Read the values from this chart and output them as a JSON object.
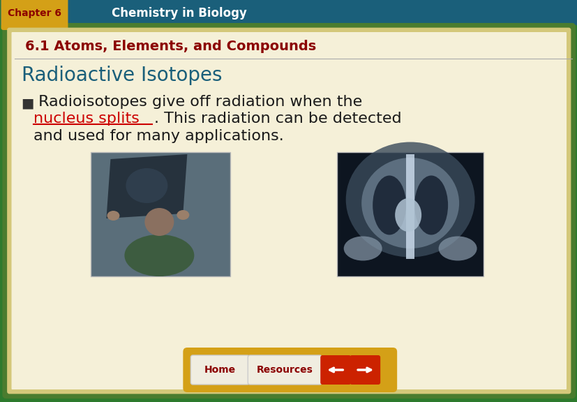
{
  "outer_bg": "#2d7a2d",
  "header_bg": "#1a5f7a",
  "header_chapter_bg": "#d4a017",
  "header_chapter_text": "Chapter 6",
  "header_chapter_text_color": "#8b0000",
  "header_title_text": "Chemistry in Biology",
  "header_title_text_color": "#ffffff",
  "content_bg": "#f5f0d8",
  "inner_border_color": "#4a7c2f",
  "inner_border_color2": "#d4c87a",
  "section_title": "6.1 Atoms, Elements, and Compounds",
  "section_title_color": "#8b0000",
  "slide_title": "Radioactive Isotopes",
  "slide_title_color": "#1a5f7a",
  "bullet_symbol": "■",
  "bullet_text_1": " Radioisotopes give off radiation when the",
  "bullet_link_text": "nucleus splits",
  "bullet_text_2": ". This radiation can be detected",
  "bullet_text_3": "and used for many applications.",
  "bullet_color": "#1a1a1a",
  "link_color": "#cc0000",
  "footer_bg": "#d4a017",
  "footer_text1": "Home",
  "footer_text2": "Resources",
  "footer_text_color": "#8b0000"
}
